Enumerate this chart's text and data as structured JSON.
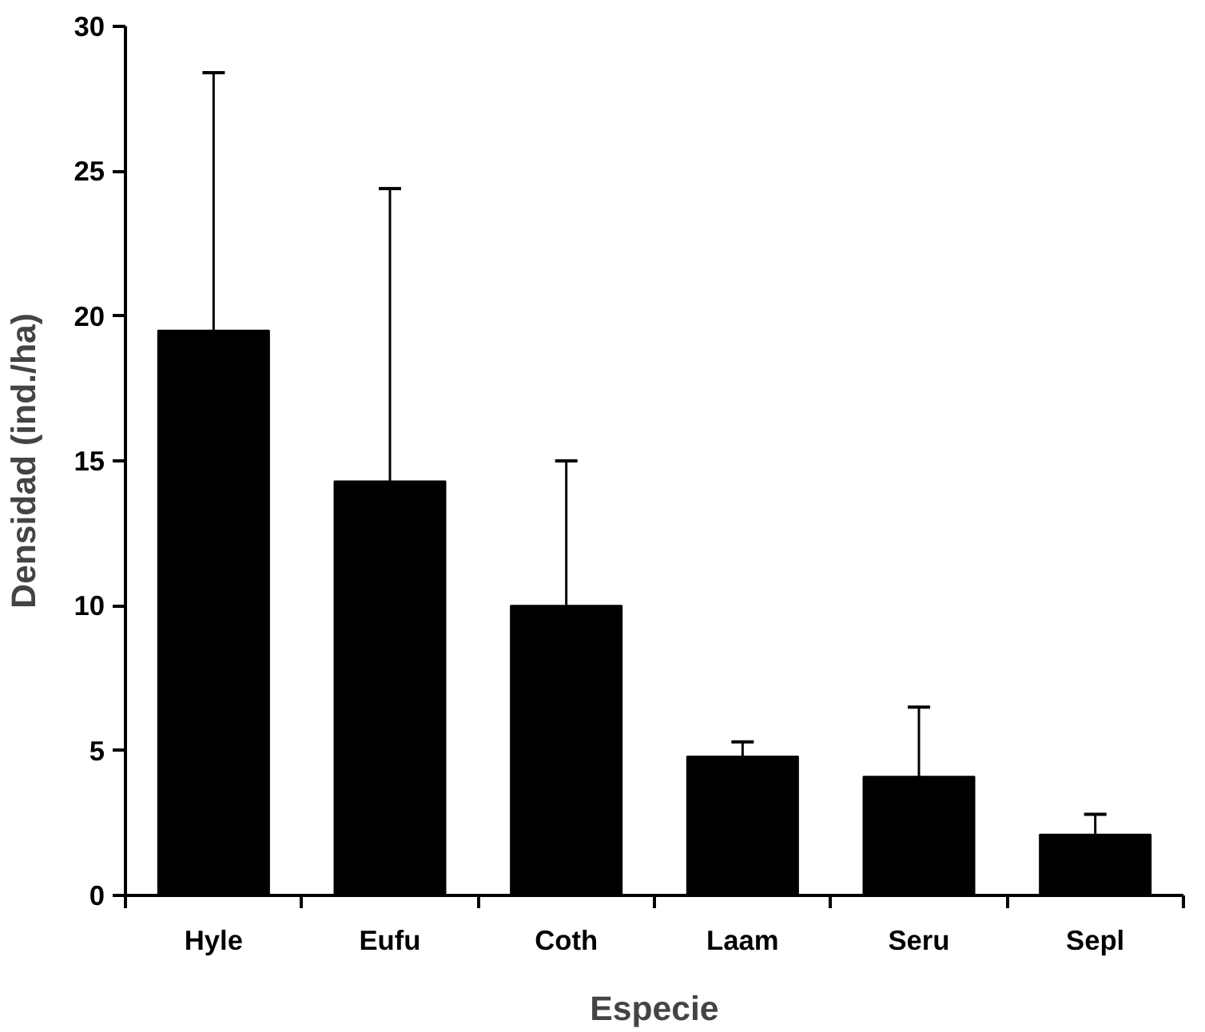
{
  "chart_data": {
    "type": "bar",
    "xlabel": "Especie",
    "ylabel": "Densidad (ind./ha)",
    "categories": [
      "Hyle",
      "Eufu",
      "Coth",
      "Laam",
      "Seru",
      "Sepl"
    ],
    "values": [
      19.5,
      14.3,
      10.0,
      4.8,
      4.1,
      2.1
    ],
    "errors": [
      [
        19.5,
        28.4
      ],
      [
        14.3,
        24.4
      ],
      [
        10.0,
        15.0
      ],
      [
        4.8,
        5.3
      ],
      [
        4.1,
        6.5
      ],
      [
        2.1,
        2.8
      ]
    ],
    "color": "#000000",
    "ylim": [
      0,
      30
    ],
    "yticks": [
      0,
      5,
      10,
      15,
      20,
      25,
      30
    ],
    "grid": false
  }
}
